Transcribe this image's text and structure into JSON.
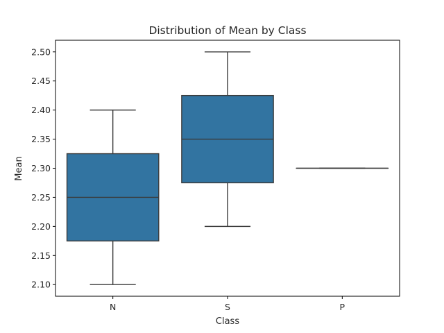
{
  "chart_data": {
    "type": "box",
    "title": "Distribution of Mean by Class",
    "xlabel": "Class",
    "ylabel": "Mean",
    "categories": [
      "N",
      "S",
      "P"
    ],
    "ylim": [
      2.08,
      2.52
    ],
    "yticks": [
      "2.10",
      "2.15",
      "2.20",
      "2.25",
      "2.30",
      "2.35",
      "2.40",
      "2.45",
      "2.50"
    ],
    "boxes": [
      {
        "category": "N",
        "whisker_low": 2.1,
        "q1": 2.175,
        "median": 2.25,
        "q3": 2.325,
        "whisker_high": 2.4
      },
      {
        "category": "S",
        "whisker_low": 2.2,
        "q1": 2.275,
        "median": 2.35,
        "q3": 2.425,
        "whisker_high": 2.5
      },
      {
        "category": "P",
        "whisker_low": 2.3,
        "q1": 2.3,
        "median": 2.3,
        "q3": 2.3,
        "whisker_high": 2.3
      }
    ],
    "box_color": "#3274a1",
    "line_color": "#3b3b3b",
    "grid": false,
    "legend": "none"
  }
}
